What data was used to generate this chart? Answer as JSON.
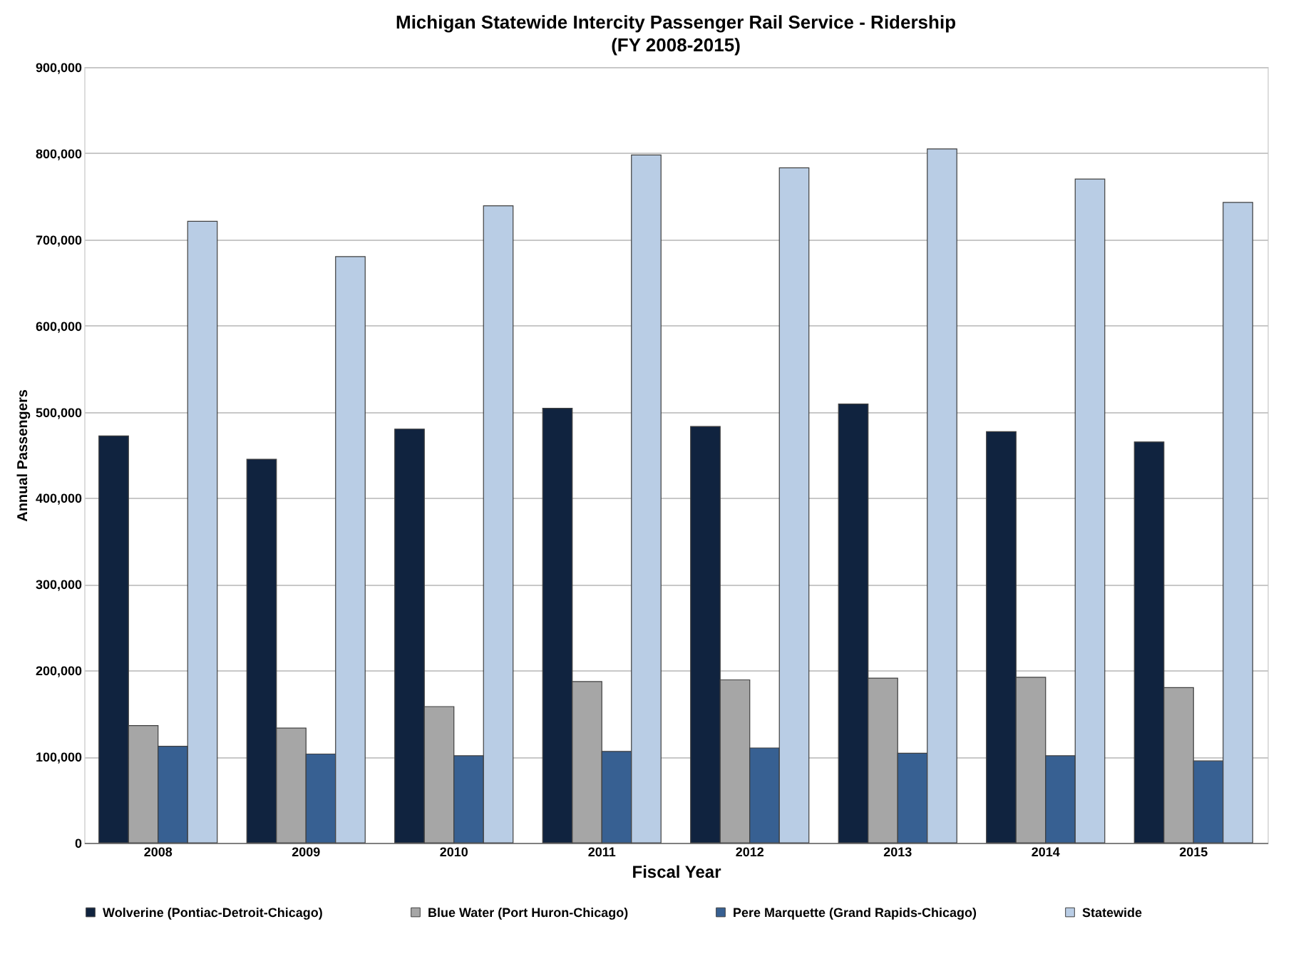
{
  "chart_data": {
    "type": "bar",
    "title": "Michigan Statewide Intercity Passenger Rail Service - Ridership",
    "subtitle": "(FY 2008-2015)",
    "xlabel": "Fiscal Year",
    "ylabel": "Annual Passengers",
    "categories": [
      "2008",
      "2009",
      "2010",
      "2011",
      "2012",
      "2013",
      "2014",
      "2015"
    ],
    "series": [
      {
        "name": "Wolverine (Pontiac-Detroit-Chicago)",
        "color": "#10233f",
        "values": [
          472000,
          445000,
          480000,
          504000,
          483000,
          509000,
          477000,
          465000
        ]
      },
      {
        "name": "Blue Water (Port Huron-Chicago)",
        "color": "#a6a6a6",
        "values": [
          136000,
          133000,
          158000,
          187000,
          189000,
          191000,
          192000,
          180000
        ]
      },
      {
        "name": "Pere Marquette (Grand Rapids-Chicago)",
        "color": "#376092",
        "values": [
          112000,
          103000,
          101000,
          106000,
          110000,
          104000,
          101000,
          95000
        ]
      },
      {
        "name": "Statewide",
        "color": "#b9cde5",
        "values": [
          721000,
          680000,
          739000,
          798000,
          783000,
          805000,
          770000,
          743000
        ]
      }
    ],
    "ylim": [
      0,
      900000
    ],
    "yticks": [
      0,
      {
        "value": 100000,
        "label": "100,000"
      },
      {
        "value": 200000,
        "label": "200,000"
      },
      {
        "value": 300000,
        "label": "300,000"
      },
      {
        "value": 400000,
        "label": "400,000"
      },
      {
        "value": 500000,
        "label": "500,000"
      },
      {
        "value": 600000,
        "label": "600,000"
      },
      {
        "value": 700000,
        "label": "700,000"
      },
      {
        "value": 800000,
        "label": "800,000"
      },
      {
        "value": 900000,
        "label": "900,000"
      }
    ],
    "grid": "y",
    "legend": "bottom"
  }
}
